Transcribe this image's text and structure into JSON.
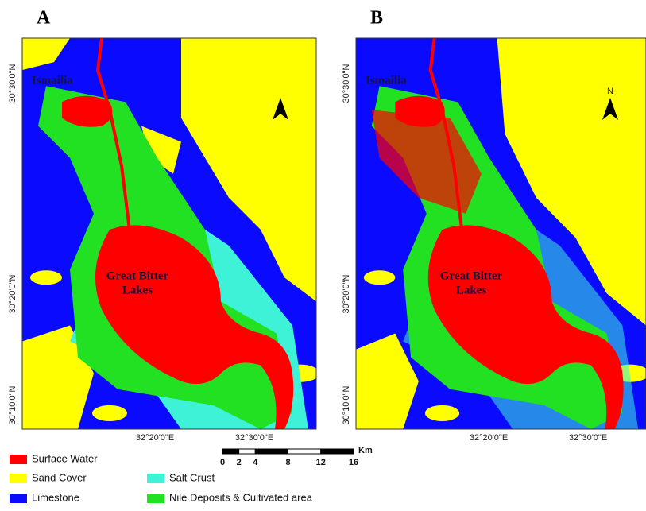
{
  "panels": [
    {
      "label": "A",
      "places": {
        "city": "Ismailia",
        "lake": [
          "Great Bitter",
          "Lakes"
        ]
      },
      "lat_labels": [
        "30°30'0\"N",
        "30°20'0\"N",
        "30°10'0\"N"
      ],
      "lon_labels": [
        "32°20'0\"E",
        "32°30'0\"E"
      ]
    },
    {
      "label": "B",
      "places": {
        "city": "Ismailia",
        "lake": [
          "Great Bitter",
          "Lakes"
        ]
      },
      "north": "N",
      "lat_labels": [
        "30°30'0\"N",
        "30°20'0\"N",
        "30°10'0\"N"
      ],
      "lon_labels": [
        "32°20'0\"E",
        "32°30'0\"E"
      ]
    }
  ],
  "legend": [
    {
      "label": "Surface Water",
      "color": "#ff0000"
    },
    {
      "label": "Sand Cover",
      "color": "#ffff00"
    },
    {
      "label": "Limestone",
      "color": "#0a0aff"
    },
    {
      "label": "Salt Crust",
      "color": "#3ef2d8"
    },
    {
      "label": "Nile Deposits & Cultivated area",
      "color": "#22e022"
    }
  ],
  "scale": {
    "ticks": [
      0,
      2,
      4,
      8,
      12,
      16
    ],
    "unit": "Km"
  }
}
